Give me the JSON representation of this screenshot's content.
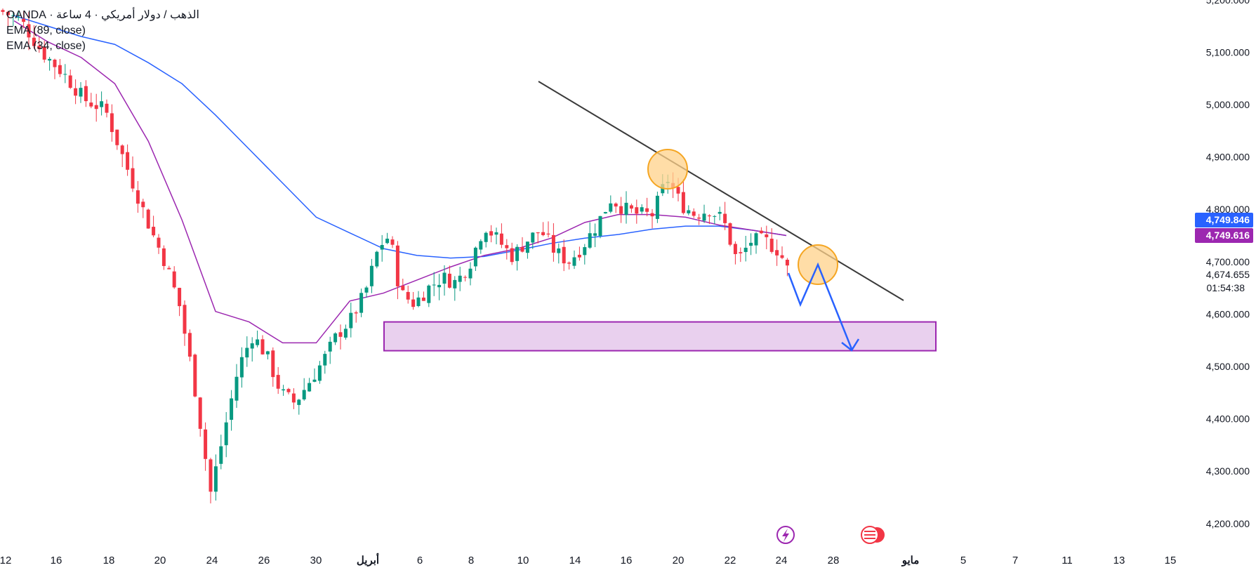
{
  "legend": {
    "symbol": "الذهب / دولار أمريكي · 4 ساعة · OANDA",
    "ema89": "EMA (89, close)",
    "ema34": "EMA (34, close)"
  },
  "colors": {
    "up": "#089981",
    "down": "#f23645",
    "ema89": "#2962ff",
    "ema34": "#9c27b0",
    "zone_fill": "#e9d0ee",
    "zone_stroke": "#9c27b0",
    "trendline": "#3a3a3a",
    "circle_fill": "#ffd18a",
    "circle_stroke": "#f5a623",
    "arrow": "#2962ff",
    "tag_blue": "#2962ff",
    "tag_purple": "#9c27b0"
  },
  "price_axis": {
    "ticks": [
      "5,200.000",
      "5,100.000",
      "5,000.000",
      "4,900.000",
      "4,800.000",
      "4,700.000",
      "4,600.000",
      "4,500.000",
      "4,400.000",
      "4,300.000",
      "4,200.000"
    ],
    "tag_ema89": "4,749.846",
    "tag_ema34": "4,749.616",
    "last_price": "4,674.655",
    "countdown": "01:54:38"
  },
  "time_axis": {
    "labels": [
      "12",
      "16",
      "18",
      "20",
      "24",
      "26",
      "30",
      "أبريل",
      "6",
      "8",
      "10",
      "14",
      "16",
      "20",
      "22",
      "24",
      "28",
      "مايو",
      "5",
      "7",
      "11",
      "13",
      "15"
    ],
    "bold": [
      "أبريل",
      "مايو"
    ]
  },
  "chart_data": {
    "type": "candlestick",
    "symbol": "الذهب / دولار أمريكي · 4 ساعة · OANDA",
    "ylim": [
      4170,
      5210
    ],
    "price_ticks": [
      5200,
      5100,
      5000,
      4900,
      4800,
      4700,
      4600,
      4500,
      4400,
      4300,
      4200
    ],
    "x_labels": [
      "12",
      "16",
      "18",
      "20",
      "24",
      "26",
      "30",
      "أبريل",
      "6",
      "8",
      "10",
      "14",
      "16",
      "20",
      "22",
      "24",
      "28",
      "مايو",
      "5",
      "7",
      "11",
      "13",
      "15"
    ],
    "series": [
      {
        "name": "EMA (89, close)",
        "values": [
          5170,
          5150,
          5130,
          5115,
          5080,
          5040,
          4980,
          4915,
          4850,
          4785,
          4755,
          4725,
          4712,
          4707,
          4710,
          4722,
          4735,
          4745,
          4752,
          4762,
          4768,
          4768,
          4760,
          4750
        ]
      },
      {
        "name": "EMA (34, close)",
        "values": [
          5160,
          5120,
          5090,
          5040,
          4930,
          4780,
          4605,
          4585,
          4545,
          4545,
          4625,
          4640,
          4665,
          4690,
          4712,
          4725,
          4745,
          4775,
          4790,
          4790,
          4785,
          4770,
          4760,
          4750
        ]
      }
    ],
    "annotations": {
      "support_zone": [
        4530,
        4585
      ],
      "trendline": "descending",
      "projection": "down",
      "marked_highs": 2
    },
    "current": {
      "price": 4674.655,
      "ema89": 4749.846,
      "ema34": 4749.616
    }
  }
}
